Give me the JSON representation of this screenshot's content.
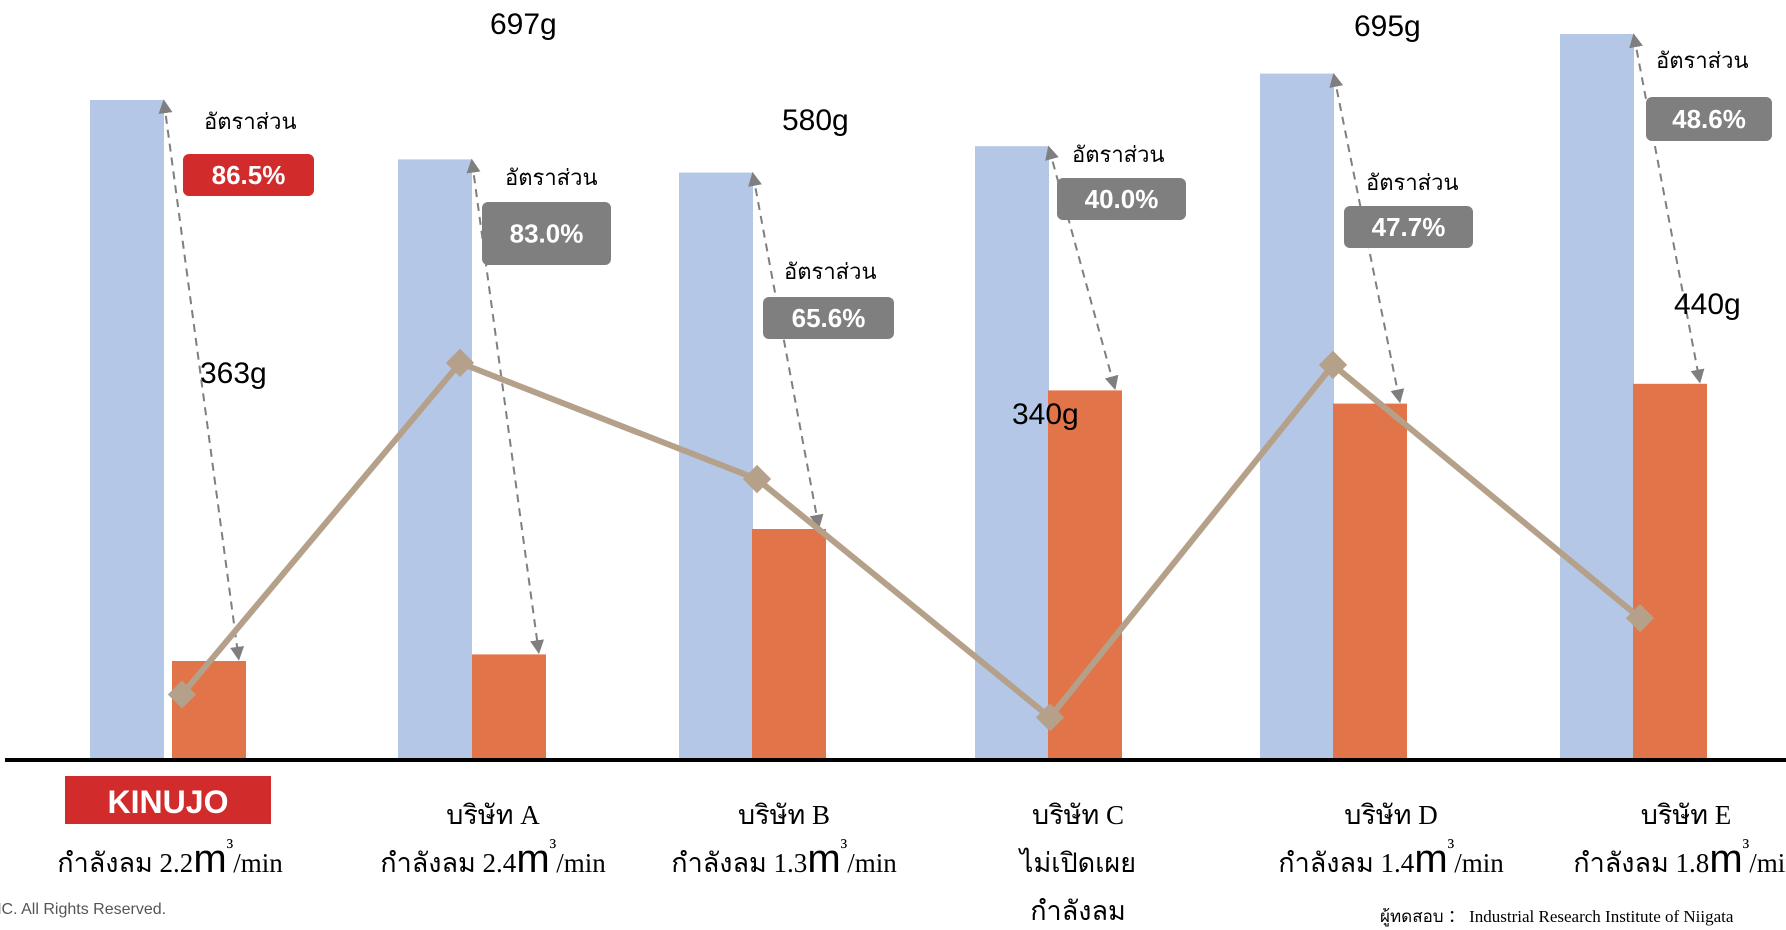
{
  "chart_data": {
    "type": "bar",
    "categories": [
      "KINUJO",
      "บริษัท A",
      "บริษัท B",
      "บริษัท C",
      "บริษัท D",
      "บริษัท E"
    ],
    "series": [
      {
        "values": [
          100,
          91,
          89,
          93,
          104,
          110
        ]
      },
      {
        "values": [
          15,
          16,
          35,
          56,
          54,
          57
        ]
      },
      {
        "values": [
          363,
          697,
          580,
          340,
          695,
          440
        ]
      }
    ],
    "line_value_labels": [
      "363g",
      "697g",
      "580g",
      "340g",
      "695g",
      "440g"
    ],
    "ratio_label": "อัตราส่วน",
    "ratios": [
      "86.5%",
      "83.0%",
      "65.6%",
      "40.0%",
      "47.7%",
      "48.6%"
    ],
    "highlight_index": 0,
    "category_lines": [
      [
        "กำลังลม 2.2",
        "m³",
        "/min"
      ],
      [
        "กำลังลม 2.4",
        "m³",
        "/min"
      ],
      [
        "กำลังลม 1.3",
        "m³",
        "/min"
      ],
      [
        "ไม่เปิดเผย"
      ],
      [
        "กำลังลม 1.4",
        "m³",
        "/min"
      ],
      [
        "กำลังลม 1.8",
        "m³",
        "/min"
      ]
    ],
    "extra_category_line": "กำลังลม",
    "footer_left": "NC. All Rights Reserved.",
    "footer_right": "ผู้ทดสอบ ： Industrial Research Institute of Niigata",
    "colors": {
      "bar1": "#B4C7E7",
      "bar2": "#E2744A",
      "line": "#B5A08A",
      "ratio_box": "#7F7F7F",
      "highlight": "#D12B2B",
      "axis": "#000000",
      "arrow": "#7F7F7F"
    }
  }
}
